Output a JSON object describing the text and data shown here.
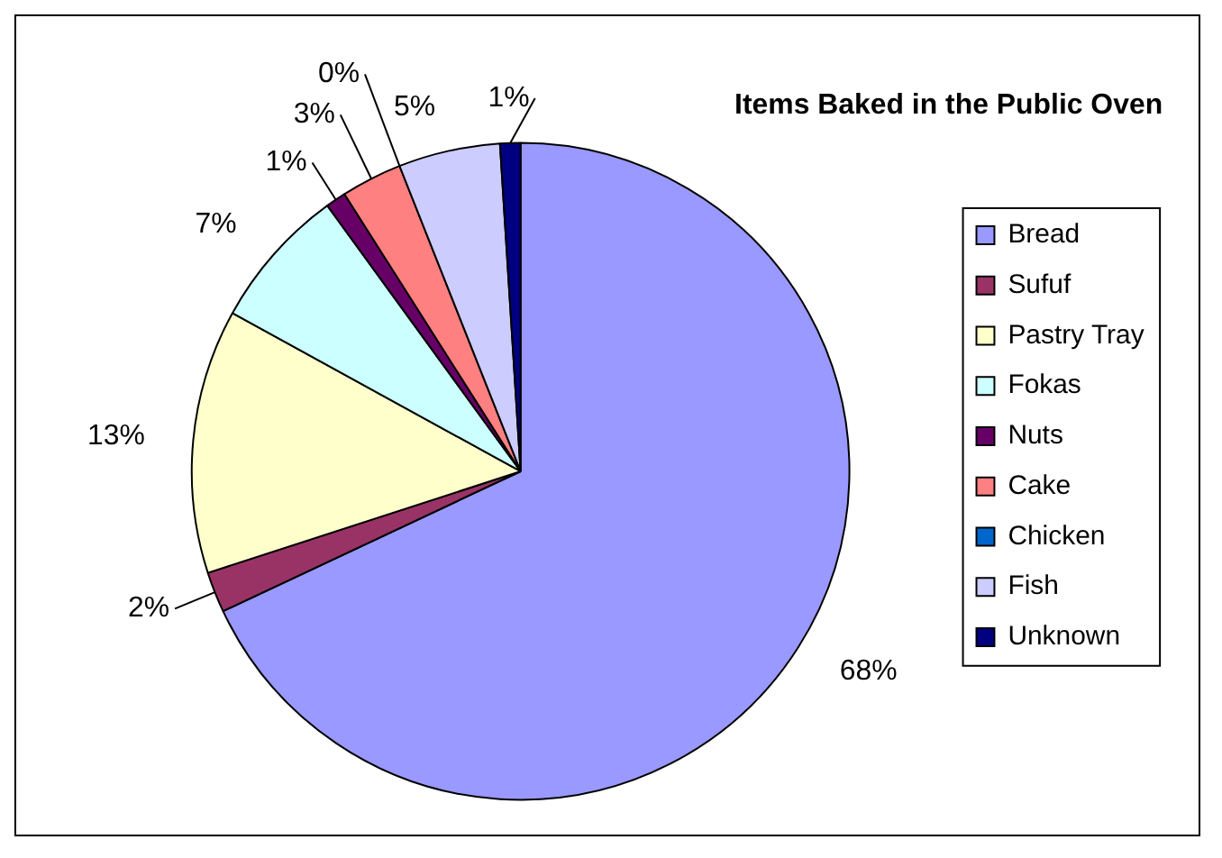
{
  "chart_data": {
    "type": "pie",
    "title": "Items Baked in the Public Oven",
    "categories": [
      "Bread",
      "Sufuf",
      "Pastry Tray",
      "Fokas",
      "Nuts",
      "Cake",
      "Chicken",
      "Fish",
      "Unknown"
    ],
    "values": [
      68,
      2,
      13,
      7,
      1,
      3,
      0,
      5,
      1
    ],
    "value_labels": [
      "68%",
      "2%",
      "13%",
      "7%",
      "1%",
      "3%",
      "0%",
      "5%",
      "1%"
    ],
    "colors": [
      "#9999ff",
      "#993366",
      "#ffffcc",
      "#ccffff",
      "#660066",
      "#ff8080",
      "#0066cc",
      "#ccccff",
      "#000080"
    ],
    "legend": "right"
  }
}
